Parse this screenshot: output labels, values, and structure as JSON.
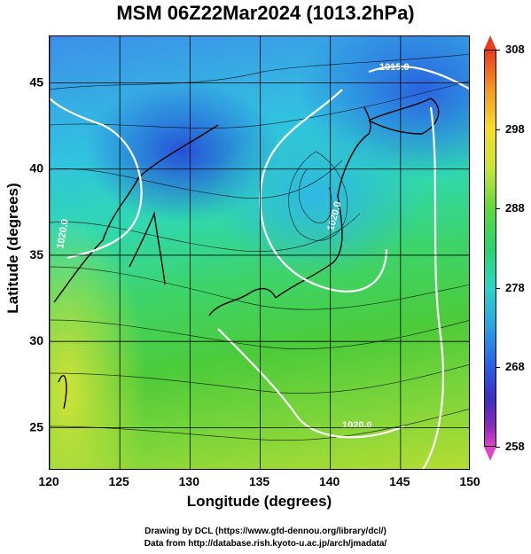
{
  "title": "MSM 06Z22Mar2024 (1013.2hPa)",
  "map": {
    "xlabel": "Longitude (degrees)",
    "ylabel": "Latitude  (degrees)",
    "lon_ticks": [
      "120",
      "125",
      "130",
      "135",
      "140",
      "145",
      "150"
    ],
    "lat_ticks": [
      "25",
      "30",
      "35",
      "40",
      "45"
    ],
    "lon_range": [
      120,
      150
    ],
    "lat_range": [
      22.5,
      47.7
    ],
    "contour_labels": [
      "1015.0",
      "1020.0",
      "1020.0",
      "1020.0"
    ]
  },
  "colorbar": {
    "labels": [
      "308",
      "298",
      "288",
      "278",
      "268",
      "258"
    ],
    "colors": {
      "top": "#ea3a1f",
      "bottom": "#e043c9"
    }
  },
  "credits": {
    "line1": "Drawing by DCL (https://www.gfd-dennou.org/library/dcl/)",
    "line2": "Data from http://database.rish.kyoto-u.ac.jp/arch/jmadata/"
  }
}
